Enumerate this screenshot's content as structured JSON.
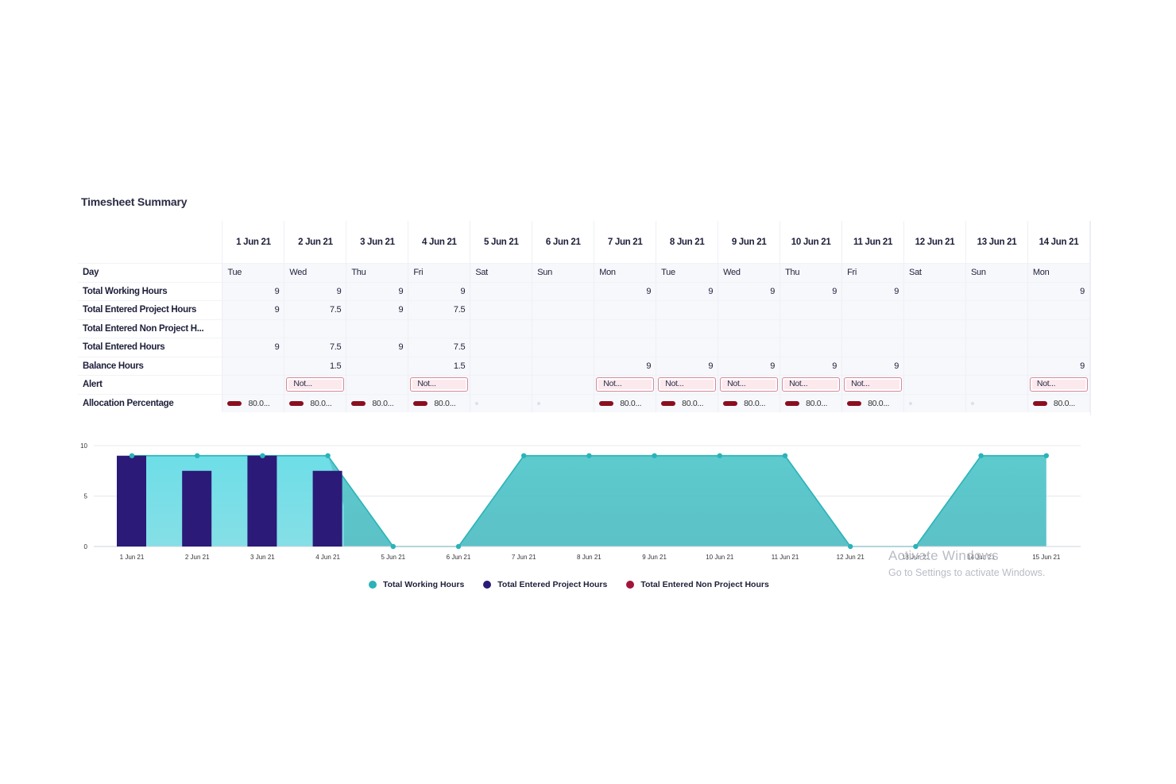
{
  "title": "Timesheet Summary",
  "table": {
    "dates": [
      "1 Jun 21",
      "2 Jun 21",
      "3 Jun 21",
      "4 Jun 21",
      "5 Jun 21",
      "6 Jun 21",
      "7 Jun 21",
      "8 Jun 21",
      "9 Jun 21",
      "10 Jun 21",
      "11 Jun 21",
      "12 Jun 21",
      "13 Jun 21",
      "14 Jun 21"
    ],
    "rows": [
      {
        "label": "Day",
        "align": "txt",
        "values": [
          "Tue",
          "Wed",
          "Thu",
          "Fri",
          "Sat",
          "Sun",
          "Mon",
          "Tue",
          "Wed",
          "Thu",
          "Fri",
          "Sat",
          "Sun",
          "Mon"
        ]
      },
      {
        "label": "Total Working Hours",
        "align": "num",
        "values": [
          "9",
          "9",
          "9",
          "9",
          "",
          "",
          "9",
          "9",
          "9",
          "9",
          "9",
          "",
          "",
          "9"
        ]
      },
      {
        "label": "Total Entered Project Hours",
        "align": "num",
        "values": [
          "9",
          "7.5",
          "9",
          "7.5",
          "",
          "",
          "",
          "",
          "",
          "",
          "",
          "",
          "",
          ""
        ]
      },
      {
        "label": "Total Entered Non Project H...",
        "align": "num",
        "values": [
          "",
          "",
          "",
          "",
          "",
          "",
          "",
          "",
          "",
          "",
          "",
          "",
          "",
          ""
        ]
      },
      {
        "label": "Total Entered Hours",
        "align": "num",
        "values": [
          "9",
          "7.5",
          "9",
          "7.5",
          "",
          "",
          "",
          "",
          "",
          "",
          "",
          "",
          "",
          ""
        ]
      },
      {
        "label": "Balance Hours",
        "align": "num",
        "values": [
          "",
          "1.5",
          "",
          "1.5",
          "",
          "",
          "9",
          "9",
          "9",
          "9",
          "9",
          "",
          "",
          "9"
        ]
      },
      {
        "label": "Alert",
        "type": "alert",
        "values": [
          "",
          "Not...",
          "",
          "Not...",
          "",
          "",
          "Not...",
          "Not...",
          "Not...",
          "Not...",
          "Not...",
          "",
          "",
          "Not..."
        ]
      },
      {
        "label": "Allocation Percentage",
        "type": "alloc",
        "values": [
          "80.0...",
          "80.0...",
          "80.0...",
          "80.0...",
          "",
          "",
          "80.0...",
          "80.0...",
          "80.0...",
          "80.0...",
          "80.0...",
          "",
          "",
          "80.0..."
        ]
      }
    ]
  },
  "chart_data": {
    "type": "area",
    "x": [
      "1 Jun 21",
      "2 Jun 21",
      "3 Jun 21",
      "4 Jun 21",
      "5 Jun 21",
      "6 Jun 21",
      "7 Jun 21",
      "8 Jun 21",
      "9 Jun 21",
      "10 Jun 21",
      "11 Jun 21",
      "12 Jun 21",
      "13 Jun 21",
      "14 Jun 21",
      "15 Jun 21"
    ],
    "yticks": [
      "0",
      "5",
      "10"
    ],
    "ylim": [
      0,
      10
    ],
    "series": [
      {
        "name": "Total Working Hours",
        "type": "area",
        "color": "#2ab3b8",
        "values": [
          9,
          9,
          9,
          9,
          0,
          0,
          9,
          9,
          9,
          9,
          9,
          0,
          0,
          9,
          9
        ]
      },
      {
        "name": "Total Entered Project Hours",
        "type": "bar",
        "color": "#2b1a78",
        "values": [
          9,
          7.5,
          9,
          7.5,
          0,
          0,
          0,
          0,
          0,
          0,
          0,
          0,
          0,
          0,
          0
        ]
      },
      {
        "name": "Total Entered Non Project Hours",
        "type": "bar",
        "color": "#a3143a",
        "values": [
          0,
          0,
          0,
          0,
          0,
          0,
          0,
          0,
          0,
          0,
          0,
          0,
          0,
          0,
          0
        ]
      }
    ],
    "legend_position": "bottom"
  },
  "watermark": {
    "title": "Activate Windows",
    "subtitle": "Go to Settings to activate Windows."
  }
}
